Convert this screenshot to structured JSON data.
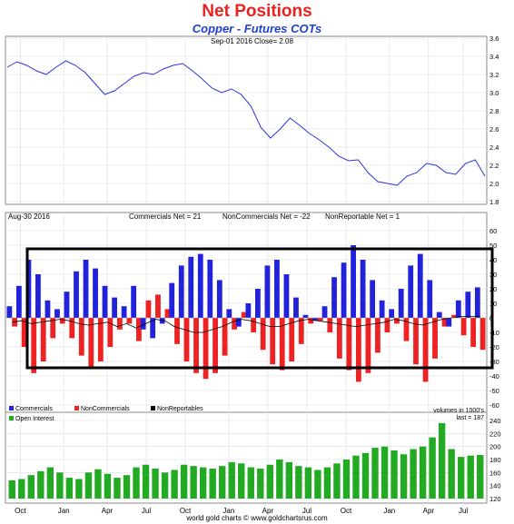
{
  "title": "Net Positions",
  "subtitle": "Copper - Futures COTs",
  "footer": "world gold charts © www.goldchartsrus.com",
  "colors": {
    "title": "#e8231f",
    "subtitle": "#1f3fd1",
    "price_line": "#2b35d8",
    "commercials": "#2222dd",
    "noncommercials": "#ee2222",
    "nonreportables": "#000000",
    "open_interest": "#22aa22",
    "grid": "#dddddd"
  },
  "chart_data": [
    {
      "type": "line",
      "name": "price",
      "info": "Sep-01  2016   Close= 2.08",
      "ylim": [
        1.8,
        3.6
      ],
      "yticks": [
        "3.6",
        "3.4",
        "3.2",
        "3.0",
        "2.8",
        "2.6",
        "2.4",
        "2.2",
        "2.0",
        "1.8"
      ],
      "ytick_values": [
        3.6,
        3.4,
        3.2,
        3.0,
        2.8,
        2.6,
        2.4,
        2.2,
        2.0,
        1.8
      ],
      "grid": true,
      "x_count": 50,
      "y": [
        3.28,
        3.34,
        3.3,
        3.24,
        3.2,
        3.28,
        3.35,
        3.3,
        3.22,
        3.1,
        2.98,
        3.02,
        3.1,
        3.18,
        3.22,
        3.2,
        3.26,
        3.3,
        3.32,
        3.24,
        3.15,
        3.05,
        3.0,
        3.04,
        2.98,
        2.85,
        2.62,
        2.5,
        2.6,
        2.72,
        2.64,
        2.55,
        2.48,
        2.4,
        2.3,
        2.25,
        2.26,
        2.12,
        2.02,
        2.0,
        1.98,
        2.08,
        2.12,
        2.22,
        2.2,
        2.12,
        2.1,
        2.22,
        2.26,
        2.08
      ]
    },
    {
      "type": "bar",
      "name": "net positions",
      "info_date": "Aug-30  2016",
      "info_commercials": "Commercials Net = 21",
      "info_noncommercials": "NonCommercials Net = -22",
      "info_nonreportables": "NonReportable Net = 1",
      "ylim": [
        -60,
        60
      ],
      "yticks": [
        "60",
        "50",
        "40",
        "30",
        "20",
        "10",
        "0",
        "-10",
        "-20",
        "-30",
        "-40",
        "-50",
        "-60"
      ],
      "ytick_values": [
        60,
        50,
        40,
        30,
        20,
        10,
        0,
        -10,
        -20,
        -30,
        -40,
        -50,
        -60
      ],
      "grid": true,
      "legend": [
        "Commercials",
        "NonCommercials",
        "NonReportables"
      ],
      "legend_position": "bottom-left",
      "series": [
        {
          "name": "Commercials",
          "values": [
            8,
            22,
            40,
            30,
            12,
            6,
            18,
            32,
            40,
            34,
            22,
            14,
            8,
            22,
            -8,
            -14,
            -4,
            24,
            36,
            42,
            44,
            40,
            26,
            6,
            -6,
            10,
            20,
            36,
            40,
            30,
            14,
            2,
            -2,
            8,
            28,
            38,
            50,
            40,
            26,
            12,
            6,
            20,
            36,
            44,
            26,
            4,
            -6,
            12,
            18,
            21
          ]
        },
        {
          "name": "NonCommercials",
          "values": [
            -6,
            -20,
            -38,
            -30,
            -14,
            -4,
            -14,
            -26,
            -34,
            -30,
            -20,
            -8,
            -4,
            -16,
            12,
            16,
            6,
            -18,
            -30,
            -38,
            -42,
            -38,
            -26,
            -8,
            4,
            -10,
            -22,
            -32,
            -36,
            -30,
            -18,
            -4,
            -2,
            -10,
            -28,
            -36,
            -44,
            -38,
            -24,
            -10,
            -4,
            -16,
            -32,
            -44,
            -28,
            -6,
            2,
            -12,
            -20,
            -22
          ]
        },
        {
          "name": "NonReportables",
          "values": [
            -3,
            -2,
            -4,
            -3,
            -2,
            -1,
            -2,
            -4,
            -5,
            -4,
            -3,
            -6,
            -4,
            -7,
            -4,
            -1,
            -2,
            -6,
            -8,
            -10,
            -10,
            -8,
            -6,
            -3,
            -1,
            -2,
            -4,
            -6,
            -6,
            -4,
            -2,
            -1,
            -2,
            -3,
            -4,
            -5,
            -6,
            -5,
            -4,
            -3,
            -1,
            -2,
            -4,
            -5,
            -3,
            -1,
            0,
            1,
            1,
            1
          ]
        }
      ]
    },
    {
      "type": "bar",
      "name": "Open Interest",
      "units": "volumes in 1000's",
      "last": "last = 187",
      "ylim": [
        120,
        240
      ],
      "yticks": [
        "240",
        "220",
        "200",
        "180",
        "160",
        "140",
        "120"
      ],
      "ytick_values": [
        240,
        220,
        200,
        180,
        160,
        140,
        120
      ],
      "grid": true,
      "legend": [
        "Open Interest"
      ],
      "values": [
        148,
        150,
        156,
        162,
        168,
        160,
        152,
        150,
        160,
        165,
        158,
        152,
        156,
        168,
        172,
        166,
        160,
        164,
        172,
        170,
        168,
        166,
        170,
        176,
        174,
        168,
        166,
        172,
        180,
        176,
        170,
        168,
        164,
        168,
        174,
        180,
        186,
        190,
        198,
        200,
        194,
        188,
        196,
        200,
        214,
        236,
        196,
        184,
        186,
        187
      ]
    }
  ],
  "x_axis": {
    "labels": [
      "Oct",
      "Jan",
      "Apr",
      "Jul",
      "Oct",
      "Jan",
      "Apr",
      "Jul",
      "Oct",
      "Jan",
      "Apr",
      "Jul"
    ],
    "label_idx": [
      1.5,
      6.5,
      11.5,
      16.0,
      20.5,
      25.5,
      30.0,
      34.5,
      39.0,
      44.0,
      48.5,
      52.5
    ]
  }
}
